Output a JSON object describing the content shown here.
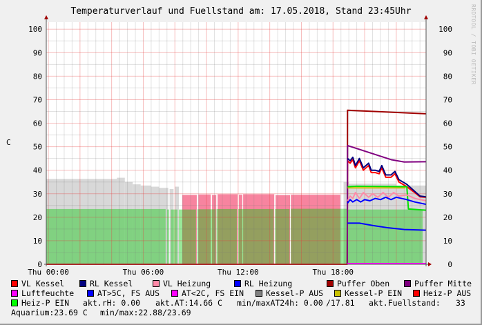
{
  "chart_data": {
    "type": "area",
    "title": "Temperaturverlauf und Fuellstand am: 17.05.2018, Stand 23:45Uhr",
    "ylabel": "C",
    "watermark": "RRDTOOL / TOBI OETIKER",
    "ylim": [
      0,
      103
    ],
    "yticks": [
      "0",
      "10",
      "20",
      "30",
      "40",
      "50",
      "60",
      "70",
      "80",
      "90",
      "100"
    ],
    "xlim": [
      "Wed 23:52",
      "Thu 23:53"
    ],
    "xticks": [
      {
        "t": "00:00",
        "label": "Thu 00:00"
      },
      {
        "t": "06:00",
        "label": "Thu 06:00"
      },
      {
        "t": "12:00",
        "label": "Thu 12:00"
      },
      {
        "t": "18:00",
        "label": "Thu 18:00"
      }
    ],
    "grid": true,
    "areas": [
      {
        "name": "grey-area",
        "color": "#d8d8d8",
        "blocks": [
          [
            "Wed 23:52",
            "04:20",
            36.3
          ],
          [
            "04:20",
            "04:50",
            36.8
          ],
          [
            "04:50",
            "05:20",
            35
          ],
          [
            "05:20",
            "05:50",
            34
          ],
          [
            "05:50",
            "06:30",
            33.5
          ],
          [
            "06:30",
            "07:00",
            33
          ],
          [
            "07:00",
            "07:35",
            32.5
          ],
          [
            "07:40",
            "07:55",
            32
          ],
          [
            "08:00",
            "08:15",
            33
          ],
          [
            "18:40",
            "19:00",
            35
          ],
          [
            "19:00",
            "22:00",
            34.3
          ],
          [
            "22:00",
            "23:53",
            33.5
          ]
        ]
      },
      {
        "name": "pink-area",
        "color": "#f7849f",
        "blocks": [
          [
            "08:28",
            "09:23",
            29.5
          ],
          [
            "09:29",
            "10:16",
            29.7
          ],
          [
            "10:21",
            "10:37",
            29.5
          ],
          [
            "10:42",
            "11:58",
            29.8
          ],
          [
            "12:03",
            "12:16",
            29.6
          ],
          [
            "12:19",
            "14:17",
            29.8
          ],
          [
            "14:22",
            "15:17",
            29.4
          ],
          [
            "15:20",
            "18:28",
            29.6
          ]
        ]
      },
      {
        "name": "green-area",
        "color": "rgba(0,200,0,0.4)",
        "blocks": [
          [
            "Wed 23:52",
            "07:25",
            23.5
          ],
          [
            "07:30",
            "07:38",
            23.3
          ],
          [
            "07:44",
            "08:10",
            23.3
          ],
          [
            "08:15",
            "09:20",
            23.3
          ],
          [
            "09:25",
            "10:35",
            23.4
          ],
          [
            "10:38",
            "11:55",
            23.5
          ],
          [
            "12:00",
            "14:15",
            23.5
          ],
          [
            "14:20",
            "15:15",
            23.5
          ],
          [
            "15:20",
            "18:55",
            23.6
          ],
          [
            "18:55",
            "23:40",
            23.3
          ]
        ]
      }
    ],
    "series": [
      {
        "name": "VL Kessel",
        "color": "#ff0000",
        "points": [
          [
            "Wed 23:52",
            0
          ],
          [
            "18:54",
            0
          ],
          [
            "18:55",
            44
          ],
          [
            "19:05",
            43
          ],
          [
            "19:15",
            44.5
          ],
          [
            "19:25",
            41
          ],
          [
            "19:40",
            44
          ],
          [
            "19:55",
            40
          ],
          [
            "20:15",
            42
          ],
          [
            "20:25",
            39
          ],
          [
            "20:40",
            39
          ],
          [
            "20:55",
            38.5
          ],
          [
            "21:05",
            41
          ],
          [
            "21:20",
            37
          ],
          [
            "21:40",
            37
          ],
          [
            "21:55",
            38.5
          ],
          [
            "22:10",
            35
          ],
          [
            "22:40",
            33
          ],
          [
            "23:10",
            30.5
          ],
          [
            "23:30",
            28.7
          ],
          [
            "23:53",
            28.5
          ]
        ]
      },
      {
        "name": "Puffer Oben",
        "color": "#a00000",
        "points": [
          [
            "18:54",
            0
          ],
          [
            "18:55",
            65.5
          ],
          [
            "23:53",
            64
          ]
        ]
      },
      {
        "name": "Puffer Mitte",
        "color": "#800080",
        "points": [
          [
            "18:54",
            0
          ],
          [
            "18:55",
            50.5
          ],
          [
            "21:40",
            44.5
          ],
          [
            "22:30",
            43.5
          ],
          [
            "23:53",
            43.6
          ]
        ]
      },
      {
        "name": "Kessel-P EIN",
        "color": "#c8c000",
        "points": [
          [
            "18:55",
            32.5
          ],
          [
            "22:35",
            32.5
          ]
        ]
      },
      {
        "name": "Heiz-P EIN",
        "color": "#00e000",
        "points": [
          [
            "18:55",
            33
          ],
          [
            "19:30",
            33.2
          ],
          [
            "22:40",
            33
          ],
          [
            "22:46",
            23.5
          ],
          [
            "23:53",
            23
          ]
        ]
      },
      {
        "name": "VL Heizung",
        "color": "#ff8aa8",
        "points": [
          [
            "18:55",
            27
          ],
          [
            "19:05",
            29
          ],
          [
            "19:15",
            28
          ],
          [
            "19:25",
            30.5
          ],
          [
            "19:40",
            28
          ],
          [
            "19:55",
            30.5
          ],
          [
            "20:15",
            28.5
          ],
          [
            "20:30",
            30
          ],
          [
            "20:50",
            28.5
          ],
          [
            "21:10",
            30.5
          ],
          [
            "21:30",
            28.5
          ],
          [
            "21:50",
            30.5
          ],
          [
            "22:10",
            29
          ],
          [
            "22:40",
            29.5
          ],
          [
            "23:10",
            28
          ],
          [
            "23:53",
            27
          ]
        ]
      },
      {
        "name": "RL Heizung",
        "color": "#0000ff",
        "points": [
          [
            "18:55",
            26
          ],
          [
            "19:05",
            27.5
          ],
          [
            "19:15",
            26.5
          ],
          [
            "19:30",
            27.5
          ],
          [
            "19:45",
            26.5
          ],
          [
            "20:00",
            27.5
          ],
          [
            "20:20",
            27
          ],
          [
            "20:40",
            28
          ],
          [
            "21:00",
            27.5
          ],
          [
            "21:20",
            28.5
          ],
          [
            "21:40",
            27.5
          ],
          [
            "22:00",
            28.5
          ],
          [
            "22:20",
            28
          ],
          [
            "22:40",
            27.5
          ],
          [
            "23:10",
            26.5
          ],
          [
            "23:53",
            25.5
          ]
        ]
      },
      {
        "name": "AT>5C, FS AUS",
        "color": "#0000ff",
        "points": [
          [
            "18:55",
            17.5
          ],
          [
            "19:40",
            17.5
          ],
          [
            "20:30",
            16.5
          ],
          [
            "21:30",
            15.5
          ],
          [
            "22:30",
            14.8
          ],
          [
            "23:53",
            14.5
          ]
        ]
      },
      {
        "name": "RL Kessel",
        "color": "#000080",
        "points": [
          [
            "18:55",
            45
          ],
          [
            "19:05",
            44
          ],
          [
            "19:15",
            45.5
          ],
          [
            "19:25",
            42
          ],
          [
            "19:40",
            45
          ],
          [
            "19:55",
            41
          ],
          [
            "20:15",
            43
          ],
          [
            "20:25",
            40
          ],
          [
            "20:40",
            40
          ],
          [
            "20:55",
            39.5
          ],
          [
            "21:05",
            42
          ],
          [
            "21:20",
            38
          ],
          [
            "21:40",
            38
          ],
          [
            "21:55",
            39.5
          ],
          [
            "22:10",
            36
          ],
          [
            "22:40",
            34
          ],
          [
            "23:10",
            31
          ],
          [
            "23:30",
            29
          ],
          [
            "23:53",
            28.7
          ]
        ]
      },
      {
        "name": "Luftfeuchte",
        "color": "#ff00ff",
        "points": [
          [
            "18:55",
            0.3
          ],
          [
            "23:53",
            0.3
          ]
        ]
      }
    ],
    "legend_placement": "bottom"
  },
  "legend": {
    "entries": [
      {
        "label": "VL Kessel",
        "color": "#ff0000"
      },
      {
        "label": "RL Kessel",
        "color": "#000080"
      },
      {
        "label": "VL Heizung",
        "color": "#ff8aa8"
      },
      {
        "label": "RL Heizung",
        "color": "#0000ff"
      },
      {
        "label": "Puffer Oben",
        "color": "#a00000"
      },
      {
        "label": "Puffer Mitte",
        "color": "#800080"
      },
      {
        "label": "Luftfeuchte",
        "color": "#ff00ff"
      },
      {
        "label": "AT>5C, FS AUS",
        "color": "#0000ff"
      },
      {
        "label": "AT<2C, FS EIN",
        "color": "#ff00ff"
      },
      {
        "label": "Kessel-P AUS",
        "color": "#808080"
      },
      {
        "label": "Kessel-P EIN",
        "color": "#c8c000"
      },
      {
        "label": "Heiz-P AUS",
        "color": "#ff0000"
      },
      {
        "label": "Heiz-P EIN",
        "color": "#00ff00"
      }
    ],
    "stats": [
      "akt.rH: 0.00",
      "akt.AT:14.66 C",
      "min/maxAT24h: 0.00",
      "/17.81",
      "akt.Fuellstand:",
      "33",
      "Aquarium:23.69 C",
      "min/max:22.88/23.69"
    ]
  }
}
